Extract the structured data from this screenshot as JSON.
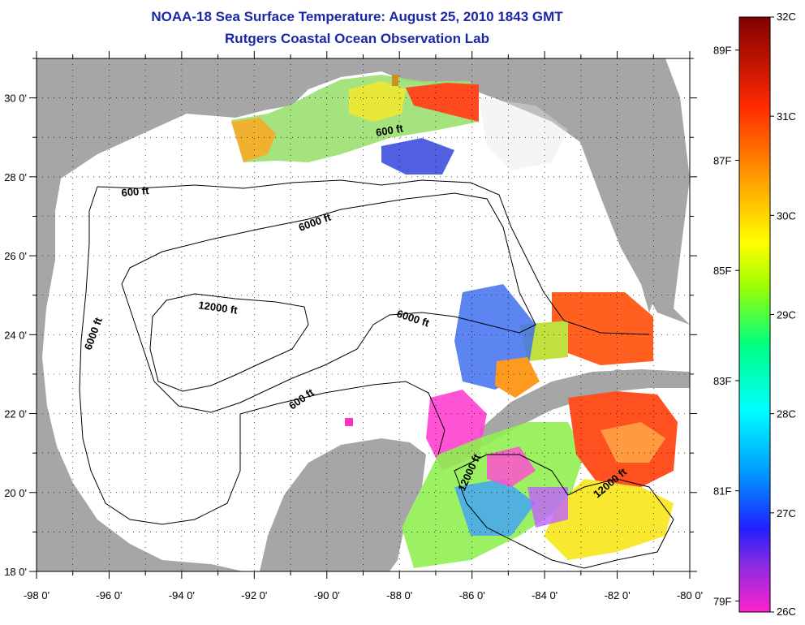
{
  "title": "NOAA-18 Sea Surface Temperature:  August 25, 2010 1843 GMT",
  "subtitle": "Rutgers Coastal Ocean Observation Lab",
  "map": {
    "region": "Gulf of Mexico",
    "lat_range": [
      18,
      31
    ],
    "lon_range": [
      -98,
      -80
    ],
    "lat_ticks": [
      "18 0'",
      "20 0'",
      "22 0'",
      "24 0'",
      "26 0'",
      "28 0'",
      "30 0'"
    ],
    "lon_ticks": [
      "-98 0'",
      "-96 0'",
      "-94 0'",
      "-92 0'",
      "-90 0'",
      "-88 0'",
      "-86 0'",
      "-84 0'",
      "-82 0'",
      "-80 0'"
    ],
    "contour_labels": {
      "c600_nw": "600 ft",
      "c600_n": "600 ft",
      "c600_s": "600 ft",
      "c6000_w": "6000 ft",
      "c6000_n": "6000 ft",
      "c6000_e": "6000 ft",
      "c12000_c": "12000 ft",
      "c12000_se1": "12000 ft",
      "c12000_se2": "12000 ft"
    },
    "colors": {
      "land": "#a6a6a6",
      "ocean": "#ffffff",
      "grid": "#000000"
    }
  },
  "colorbar": {
    "range_c": [
      26,
      32
    ],
    "celsius_labels": [
      "32C",
      "31C",
      "30C",
      "29C",
      "28C",
      "27C",
      "26C"
    ],
    "fahrenheit_labels": [
      "89F",
      "87F",
      "85F",
      "83F",
      "81F",
      "79F"
    ],
    "colors": [
      "#ff22cc",
      "#8a2be2",
      "#0000ff",
      "#00a0ff",
      "#00ffff",
      "#00ff80",
      "#80ff00",
      "#ffff00",
      "#ffa500",
      "#ff3000",
      "#8b0000"
    ]
  }
}
